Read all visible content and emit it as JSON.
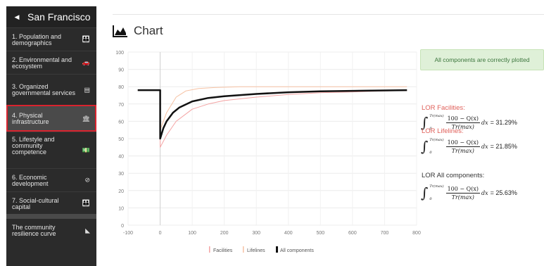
{
  "sidebar": {
    "back_icon": "chevron-left-icon",
    "city": "San Francisco",
    "items": [
      {
        "label": "1. Population and demographics",
        "icon": "people-icon",
        "glyph": "👪"
      },
      {
        "label": "2. Environmental and ecosystem",
        "icon": "car-icon",
        "glyph": "🚗"
      },
      {
        "label": "3. Organized governmental services",
        "icon": "building-icon",
        "glyph": "▤"
      },
      {
        "label": "4. Physical infrastructure",
        "icon": "bank-icon",
        "glyph": "🏛",
        "active": true
      },
      {
        "label": "5. Lifestyle and community competence",
        "icon": "money-icon",
        "glyph": "💵"
      },
      {
        "label": "6. Economic development",
        "icon": "no-icon",
        "glyph": "⊘"
      },
      {
        "label": "7. Social-cultural capital",
        "icon": "people-icon",
        "glyph": "👪"
      },
      {
        "label": "The community resilience curve",
        "icon": "area-chart-icon",
        "glyph": "◣"
      }
    ]
  },
  "header": {
    "title": "Chart",
    "icon": "area-chart-icon"
  },
  "alert": {
    "text": "All components are correctly plotted",
    "color": "#3c763d"
  },
  "lor": [
    {
      "title": "LOR Facilities:",
      "result": "= 31.29%",
      "color": "#e0605a"
    },
    {
      "title": "LOR Lifelines:",
      "result": "= 21.85%",
      "color": "#e0605a"
    },
    {
      "title": "LOR All components:",
      "result": "= 25.63%",
      "color": "#333333"
    }
  ],
  "formula": {
    "upper": "Tr(max)",
    "lower": "0",
    "numerator": "100 − Q(x)",
    "denominator": "Tr(max)",
    "dx": "dx"
  },
  "chart_data": {
    "type": "line",
    "xlim": [
      -100,
      800
    ],
    "ylim": [
      0,
      100
    ],
    "xticks": [
      -100,
      0,
      100,
      200,
      300,
      400,
      500,
      600,
      700,
      800
    ],
    "yticks": [
      0,
      10,
      20,
      30,
      40,
      50,
      60,
      70,
      80,
      90,
      100
    ],
    "grid": true,
    "legend_position": "bottom",
    "series": [
      {
        "name": "Facilities",
        "color": "#f4a3a3",
        "width": 1,
        "x": [
          -70,
          0,
          0,
          20,
          50,
          100,
          150,
          200,
          300,
          400,
          500,
          600,
          700,
          770
        ],
        "y": [
          78,
          78,
          45,
          52,
          60,
          67,
          70,
          72,
          74,
          75.5,
          76.5,
          77,
          77.5,
          77.8
        ]
      },
      {
        "name": "Lifelines",
        "color": "#f6c2a4",
        "width": 1,
        "x": [
          -70,
          0,
          0,
          20,
          50,
          80,
          120,
          170,
          250,
          400,
          770
        ],
        "y": [
          78,
          78,
          55,
          65,
          74,
          77.5,
          79,
          79.5,
          80,
          80,
          80
        ]
      },
      {
        "name": "All components",
        "color": "#111111",
        "width": 2.5,
        "x": [
          -70,
          0,
          0,
          10,
          20,
          40,
          60,
          100,
          150,
          200,
          300,
          400,
          500,
          600,
          770
        ],
        "y": [
          78,
          78,
          50,
          56,
          60,
          65,
          68,
          71.5,
          73.5,
          74.5,
          75.8,
          76.8,
          77.3,
          77.6,
          78
        ]
      }
    ]
  }
}
